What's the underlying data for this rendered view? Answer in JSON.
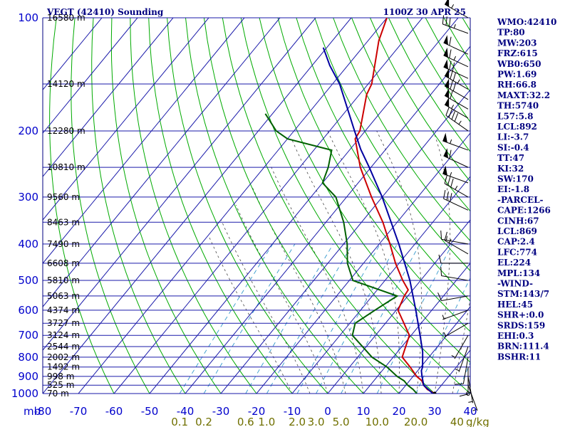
{
  "chart_data": {
    "type": "line",
    "title_left": "VEGT (42410) Sounding",
    "title_right": "1100Z 30 APR 25",
    "xlabel": "",
    "ylabel": "",
    "pressure_unit_label": "mb",
    "mixing_ratio_unit_label": "g/kg",
    "pressure_levels": [
      100,
      200,
      300,
      400,
      500,
      600,
      700,
      800,
      900,
      1000
    ],
    "pressure_range": [
      100,
      1000
    ],
    "temperature_ticks": [
      -80,
      -70,
      -60,
      -50,
      -40,
      -30,
      -20,
      -10,
      0,
      10,
      20,
      30,
      40
    ],
    "mixing_ratio_labels": [
      "0.1",
      "0.2",
      "0.6",
      "1.0",
      "2.0",
      "3.0",
      "5.0",
      "10.0",
      "20.0",
      "40"
    ],
    "height_labels": [
      {
        "p": 100,
        "text": "16580 m"
      },
      {
        "p": 150,
        "text": "14120 m"
      },
      {
        "p": 200,
        "text": "12280 m"
      },
      {
        "p": 250,
        "text": "10810 m"
      },
      {
        "p": 300,
        "text": "9560 m"
      },
      {
        "p": 350,
        "text": "8463 m"
      },
      {
        "p": 400,
        "text": "7490 m"
      },
      {
        "p": 450,
        "text": "6608 m"
      },
      {
        "p": 500,
        "text": "5810 m"
      },
      {
        "p": 550,
        "text": "5063 m"
      },
      {
        "p": 600,
        "text": "4374 m"
      },
      {
        "p": 650,
        "text": "3727 m"
      },
      {
        "p": 700,
        "text": "3124 m"
      },
      {
        "p": 750,
        "text": "2544 m"
      },
      {
        "p": 800,
        "text": "2002 m"
      },
      {
        "p": 850,
        "text": "1492 m"
      },
      {
        "p": 900,
        "text": "998 m"
      },
      {
        "p": 950,
        "text": "525 m"
      },
      {
        "p": 1000,
        "text": "70 m"
      }
    ],
    "series": [
      {
        "color": "#cc0000",
        "points": [
          {
            "p": 1000,
            "t": 30
          },
          {
            "p": 975,
            "t": 27
          },
          {
            "p": 950,
            "t": 25
          },
          {
            "p": 925,
            "t": 23.5
          },
          {
            "p": 900,
            "t": 21
          },
          {
            "p": 850,
            "t": 17
          },
          {
            "p": 800,
            "t": 12.5
          },
          {
            "p": 700,
            "t": 9.5
          },
          {
            "p": 600,
            "t": 0.5
          },
          {
            "p": 550,
            "t": -1
          },
          {
            "p": 530,
            "t": -1.3
          },
          {
            "p": 500,
            "t": -5
          },
          {
            "p": 450,
            "t": -11
          },
          {
            "p": 400,
            "t": -17
          },
          {
            "p": 350,
            "t": -24
          },
          {
            "p": 300,
            "t": -33
          },
          {
            "p": 250,
            "t": -43
          },
          {
            "p": 210,
            "t": -51
          },
          {
            "p": 200,
            "t": -51.5
          },
          {
            "p": 160,
            "t": -58
          },
          {
            "p": 150,
            "t": -59
          },
          {
            "p": 115,
            "t": -67
          },
          {
            "p": 100,
            "t": -70
          }
        ]
      },
      {
        "color": "#006000",
        "points": [
          {
            "p": 1000,
            "t": 25
          },
          {
            "p": 975,
            "t": 23
          },
          {
            "p": 950,
            "t": 20.5
          },
          {
            "p": 925,
            "t": 18.5
          },
          {
            "p": 900,
            "t": 15.5
          },
          {
            "p": 850,
            "t": 10.5
          },
          {
            "p": 800,
            "t": 4
          },
          {
            "p": 700,
            "t": -6.5
          },
          {
            "p": 650,
            "t": -8.5
          },
          {
            "p": 600,
            "t": -6
          },
          {
            "p": 550,
            "t": -3
          },
          {
            "p": 500,
            "t": -19
          },
          {
            "p": 450,
            "t": -24.5
          },
          {
            "p": 400,
            "t": -29
          },
          {
            "p": 350,
            "t": -35
          },
          {
            "p": 300,
            "t": -43
          },
          {
            "p": 275,
            "t": -50
          },
          {
            "p": 250,
            "t": -52
          },
          {
            "p": 225,
            "t": -55
          },
          {
            "p": 210,
            "t": -70
          },
          {
            "p": 200,
            "t": -75
          },
          {
            "p": 180,
            "t": -82
          }
        ]
      },
      {
        "color": "#0000a0",
        "points": [
          {
            "p": 1000,
            "t": 29.5
          },
          {
            "p": 950,
            "t": 25
          },
          {
            "p": 900,
            "t": 22.5
          },
          {
            "p": 869,
            "t": 21
          },
          {
            "p": 850,
            "t": 20.5
          },
          {
            "p": 774,
            "t": 17
          },
          {
            "p": 700,
            "t": 12.5
          },
          {
            "p": 600,
            "t": 5.5
          },
          {
            "p": 500,
            "t": -3
          },
          {
            "p": 400,
            "t": -14.5
          },
          {
            "p": 300,
            "t": -30
          },
          {
            "p": 250,
            "t": -40.5
          },
          {
            "p": 224,
            "t": -47
          },
          {
            "p": 200,
            "t": -53
          },
          {
            "p": 150,
            "t": -68
          },
          {
            "p": 134,
            "t": -75
          },
          {
            "p": 120,
            "t": -81
          }
        ]
      }
    ],
    "wind_barbs": [
      {
        "p": 100,
        "dir": 300,
        "spd": 55
      },
      {
        "p": 110,
        "dir": 290,
        "spd": 35
      },
      {
        "p": 125,
        "dir": 295,
        "spd": 60
      },
      {
        "p": 135,
        "dir": 295,
        "spd": 65
      },
      {
        "p": 145,
        "dir": 295,
        "spd": 70
      },
      {
        "p": 155,
        "dir": 300,
        "spd": 75
      },
      {
        "p": 165,
        "dir": 300,
        "spd": 70
      },
      {
        "p": 175,
        "dir": 300,
        "spd": 60
      },
      {
        "p": 185,
        "dir": 300,
        "spd": 55
      },
      {
        "p": 200,
        "dir": 305,
        "spd": 45
      },
      {
        "p": 225,
        "dir": 290,
        "spd": 55
      },
      {
        "p": 250,
        "dir": 295,
        "spd": 60
      },
      {
        "p": 275,
        "dir": 290,
        "spd": 55
      },
      {
        "p": 300,
        "dir": 300,
        "spd": 35
      },
      {
        "p": 325,
        "dir": 295,
        "spd": 30
      },
      {
        "p": 400,
        "dir": 280,
        "spd": 15
      },
      {
        "p": 425,
        "dir": 300,
        "spd": 15
      },
      {
        "p": 450,
        "dir": 270,
        "spd": 10
      },
      {
        "p": 500,
        "dir": 280,
        "spd": 10
      },
      {
        "p": 550,
        "dir": 260,
        "spd": 10
      },
      {
        "p": 600,
        "dir": 250,
        "spd": 5
      },
      {
        "p": 650,
        "dir": 240,
        "spd": 5
      },
      {
        "p": 700,
        "dir": 210,
        "spd": 5
      },
      {
        "p": 750,
        "dir": 200,
        "spd": 5
      },
      {
        "p": 800,
        "dir": 190,
        "spd": 10
      },
      {
        "p": 850,
        "dir": 180,
        "spd": 10
      },
      {
        "p": 900,
        "dir": 170,
        "spd": 5
      },
      {
        "p": 950,
        "dir": 160,
        "spd": 5
      },
      {
        "p": 1000,
        "dir": 0,
        "spd": 0
      }
    ],
    "indices": [
      "WMO:42410",
      "TP:80",
      "MW:203",
      "FRZ:615",
      "WB0:650",
      "PW:1.69",
      "RH:66.8",
      "MAXT:32.2",
      "TH:5740",
      "L57:5.8",
      "LCL:892",
      "LI:-3.7",
      "SI:-0.4",
      "TT:47",
      "KI:32",
      "SW:170",
      "EI:-1.8",
      "-PARCEL-",
      "CAPE:1266",
      "CINH:67",
      "LCL:869",
      "CAP:2.4",
      "LFC:774",
      "EL:224",
      "MPL:134",
      "-WIND-",
      "STM:143/7",
      "HEL:45",
      "SHR+:0.0",
      "SRDS:159",
      "EHI:0.3",
      "BRN:111.4",
      "BSHR:11"
    ]
  },
  "colors": {
    "frame": "#000080",
    "isotherm": "#1a1aaa",
    "dry_adiabat": "#00aa00",
    "moist_adiabat": "#444444",
    "mixing_ratio": "#3399cc",
    "temperature": "#cc0000",
    "dewpoint": "#006000",
    "parcel": "#0000a0"
  }
}
